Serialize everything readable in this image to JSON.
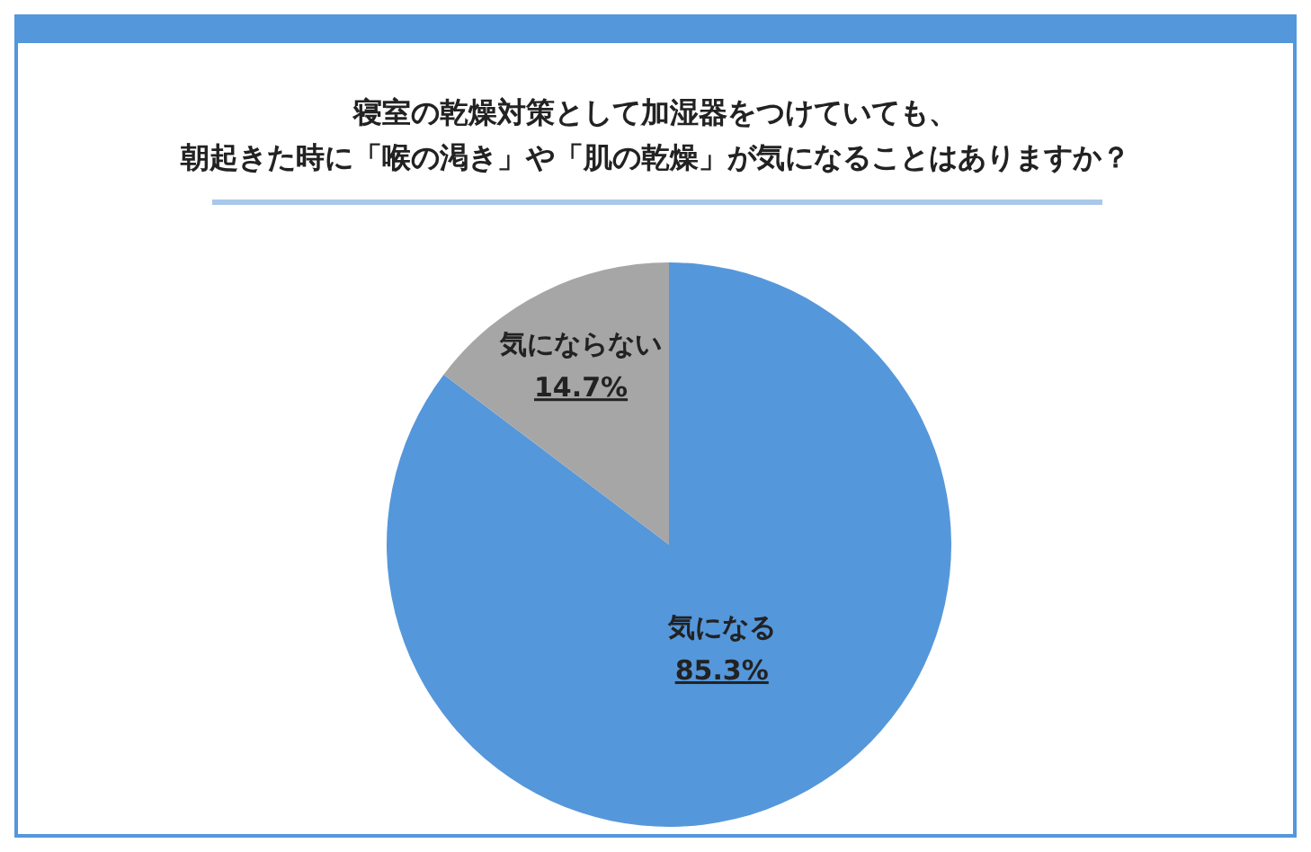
{
  "chart_data": {
    "type": "pie",
    "title": "寝室の乾燥対策として加湿器をつけていても、朝起きた時に「喉の渇き」や「肌の乾燥」が気になることはありますか？",
    "categories": [
      "気になる",
      "気にならない"
    ],
    "values": [
      85.3,
      14.7
    ],
    "colors": [
      "#5597db",
      "#a6a6a6"
    ],
    "value_labels": [
      "85.3%",
      "14.7%"
    ]
  }
}
